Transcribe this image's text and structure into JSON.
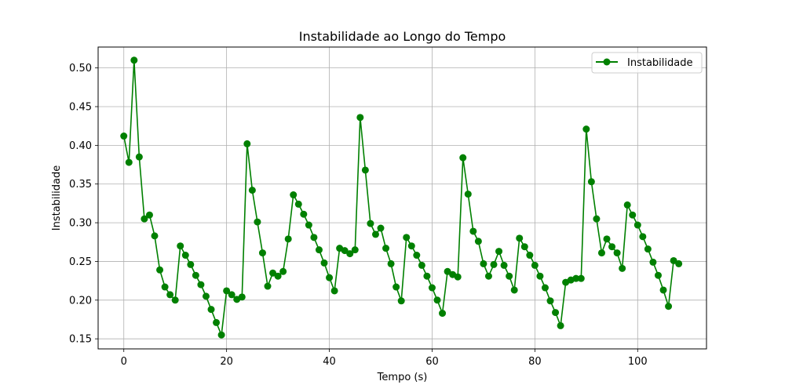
{
  "chart_data": {
    "type": "line",
    "title": "Instabilidade ao Longo do Tempo",
    "xlabel": "Tempo (s)",
    "ylabel": "Instabilidade",
    "xlim": [
      -5,
      113.4
    ],
    "ylim": [
      0.137,
      0.527
    ],
    "x_ticks": [
      0,
      20,
      40,
      60,
      80,
      100
    ],
    "y_ticks": [
      0.15,
      0.2,
      0.25,
      0.3,
      0.35,
      0.4,
      0.45,
      0.5
    ],
    "grid": true,
    "legend_position": "top-right",
    "series": [
      {
        "name": "Instabilidade",
        "color": "#008000",
        "marker": "circle",
        "x": [
          0,
          1,
          2,
          3,
          4,
          5,
          6,
          7,
          8,
          9,
          10,
          11,
          12,
          13,
          14,
          15,
          16,
          17,
          18,
          19,
          20,
          21,
          22,
          23,
          24,
          25,
          26,
          27,
          28,
          29,
          30,
          31,
          32,
          33,
          34,
          35,
          36,
          37,
          38,
          39,
          40,
          41,
          42,
          43,
          44,
          45,
          46,
          47,
          48,
          49,
          50,
          51,
          52,
          53,
          54,
          55,
          56,
          57,
          58,
          59,
          60,
          61,
          62,
          63,
          64,
          65,
          66,
          67,
          68,
          69,
          70,
          71,
          72,
          73,
          74,
          75,
          76,
          77,
          78,
          79,
          80,
          81,
          82,
          83,
          84,
          85,
          86,
          87,
          88,
          89,
          90,
          91,
          92,
          93,
          94,
          95,
          96,
          97,
          98,
          99,
          100,
          101,
          102,
          103,
          104,
          105,
          106,
          107,
          108
        ],
        "y": [
          0.412,
          0.378,
          0.51,
          0.385,
          0.305,
          0.31,
          0.283,
          0.239,
          0.217,
          0.207,
          0.2,
          0.27,
          0.258,
          0.246,
          0.232,
          0.22,
          0.205,
          0.188,
          0.171,
          0.155,
          0.212,
          0.207,
          0.201,
          0.204,
          0.402,
          0.342,
          0.301,
          0.261,
          0.218,
          0.235,
          0.231,
          0.237,
          0.279,
          0.336,
          0.324,
          0.311,
          0.297,
          0.281,
          0.265,
          0.248,
          0.229,
          0.212,
          0.267,
          0.264,
          0.26,
          0.265,
          0.436,
          0.368,
          0.299,
          0.285,
          0.293,
          0.267,
          0.247,
          0.217,
          0.199,
          0.281,
          0.27,
          0.258,
          0.245,
          0.231,
          0.216,
          0.2,
          0.183,
          0.237,
          0.233,
          0.23,
          0.384,
          0.337,
          0.289,
          0.276,
          0.247,
          0.231,
          0.246,
          0.263,
          0.245,
          0.231,
          0.213,
          0.28,
          0.269,
          0.258,
          0.245,
          0.231,
          0.216,
          0.199,
          0.184,
          0.167,
          0.223,
          0.226,
          0.228,
          0.228,
          0.421,
          0.353,
          0.305,
          0.261,
          0.279,
          0.269,
          0.261,
          0.241,
          0.323,
          0.31,
          0.297,
          0.282,
          0.266,
          0.249,
          0.232,
          0.213,
          0.192,
          0.251,
          0.247
        ]
      }
    ]
  }
}
